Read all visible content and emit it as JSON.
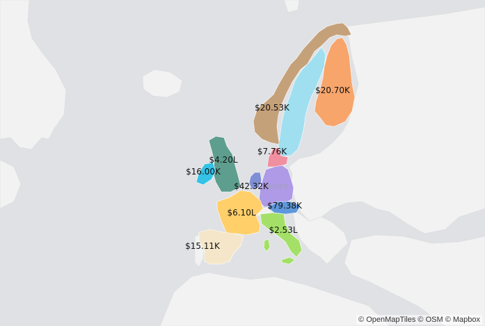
{
  "map": {
    "watermark": "ROPE",
    "attribution": "© OpenMapTiles © OSM © Mapbox"
  },
  "regions": [
    {
      "key": "norway",
      "value": "$20.53K",
      "color": "#c5a17a"
    },
    {
      "key": "sweden",
      "value": "",
      "color": "#9fdff0"
    },
    {
      "key": "finland",
      "value": "$20.70K",
      "color": "#f7a56b"
    },
    {
      "key": "denmark",
      "value": "$7.76K",
      "color": "#f08fa0"
    },
    {
      "key": "united-kingdom",
      "value": "$4.20L",
      "color": "#5e9e8e"
    },
    {
      "key": "ireland",
      "value": "$16.00K",
      "color": "#34c2e6"
    },
    {
      "key": "netherlands",
      "value": "$42.32K",
      "color": "#7f8fd6"
    },
    {
      "key": "germany",
      "value": "",
      "color": "#ae9ae6"
    },
    {
      "key": "austria",
      "value": "$79.38K",
      "color": "#5e98dc"
    },
    {
      "key": "france",
      "value": "$6.10L",
      "color": "#ffcf6a"
    },
    {
      "key": "italy",
      "value": "$2.53L",
      "color": "#a4e068"
    },
    {
      "key": "spain",
      "value": "$15.11K",
      "color": "#f5e6c9"
    }
  ]
}
